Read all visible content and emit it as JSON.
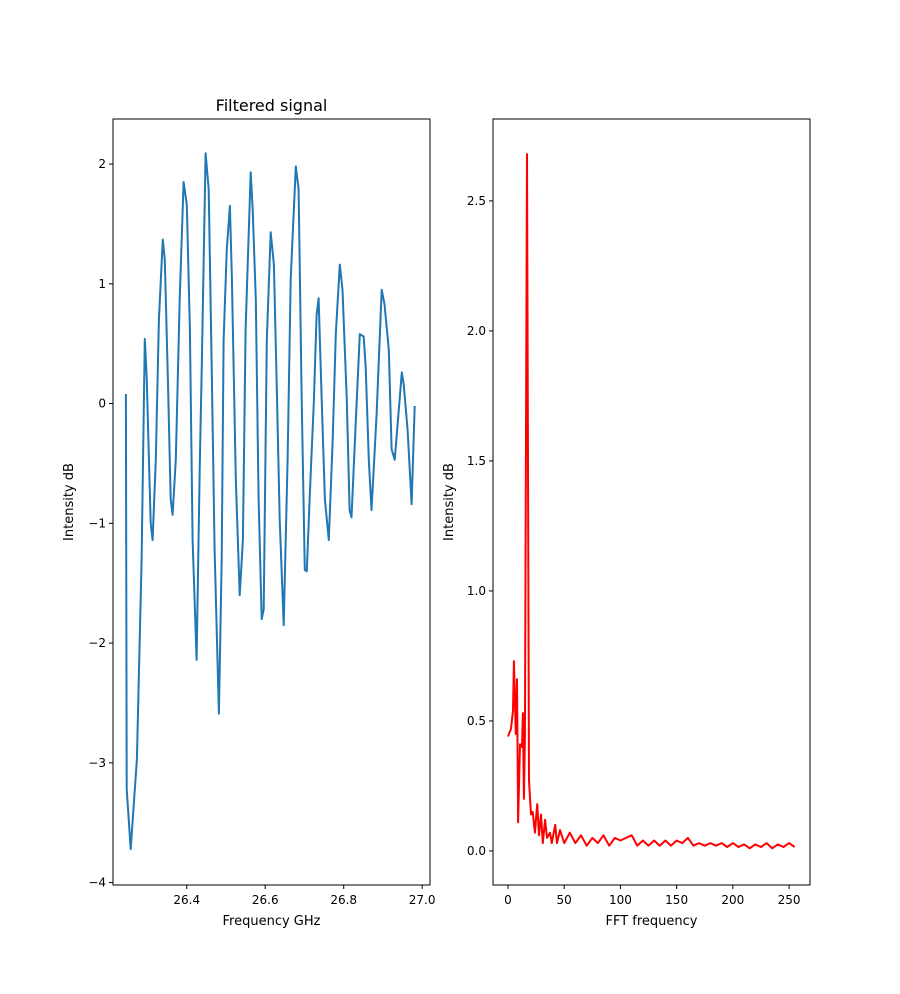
{
  "chart_data": [
    {
      "type": "line",
      "title": "Filtered signal",
      "xlabel": "Frequency GHz",
      "ylabel": "Intensity dB",
      "xlim": [
        26.212,
        27.02
      ],
      "ylim": [
        -4.02,
        2.376
      ],
      "xticks": [
        26.4,
        26.6,
        26.8,
        27.0
      ],
      "xtick_labels": [
        "26.4",
        "26.6",
        "26.8",
        "27.0"
      ],
      "yticks": [
        -4,
        -3,
        -2,
        -1,
        0,
        1,
        2
      ],
      "ytick_labels": [
        "−4",
        "−3",
        "−2",
        "−1",
        "0",
        "1",
        "2"
      ],
      "grid": false,
      "color": "#1f77b4",
      "x": [
        26.245,
        26.247,
        26.257,
        26.273,
        26.285,
        26.293,
        26.298,
        26.308,
        26.313,
        26.321,
        26.329,
        26.339,
        26.344,
        26.352,
        26.359,
        26.364,
        26.372,
        26.382,
        26.392,
        26.4,
        26.408,
        26.415,
        26.425,
        26.433,
        26.438,
        26.448,
        26.456,
        26.464,
        26.471,
        26.482,
        26.489,
        26.494,
        26.502,
        26.51,
        26.515,
        26.525,
        26.535,
        26.543,
        26.55,
        26.563,
        26.568,
        26.576,
        26.583,
        26.591,
        26.596,
        26.604,
        26.614,
        26.622,
        26.629,
        26.637,
        26.647,
        26.657,
        26.665,
        26.678,
        26.685,
        26.693,
        26.701,
        26.706,
        26.713,
        26.724,
        26.731,
        26.736,
        26.744,
        26.752,
        26.762,
        26.772,
        26.78,
        26.79,
        26.797,
        26.808,
        26.815,
        26.82,
        26.831,
        26.841,
        26.851,
        26.856,
        26.864,
        26.871,
        26.876,
        26.884,
        26.897,
        26.904,
        26.915,
        26.922,
        26.93,
        26.943,
        26.948,
        26.953,
        26.963,
        26.973,
        26.981
      ],
      "y": [
        0.08,
        -3.22,
        -3.72,
        -2.97,
        -1.3,
        0.54,
        0.22,
        -1.0,
        -1.14,
        -0.47,
        0.7,
        1.37,
        1.2,
        0.2,
        -0.8,
        -0.93,
        -0.47,
        0.87,
        1.85,
        1.66,
        0.62,
        -1.14,
        -2.14,
        -0.55,
        0.28,
        2.09,
        1.79,
        0.2,
        -1.22,
        -2.59,
        -1.3,
        0.53,
        1.29,
        1.65,
        1.04,
        -0.63,
        -1.6,
        -1.14,
        0.62,
        1.93,
        1.62,
        0.87,
        -0.8,
        -1.8,
        -1.72,
        0.53,
        1.43,
        1.16,
        0.2,
        -0.97,
        -1.85,
        -0.47,
        1.04,
        1.98,
        1.79,
        0.03,
        -1.39,
        -1.4,
        -0.8,
        0.03,
        0.74,
        0.88,
        0.03,
        -0.8,
        -1.14,
        -0.3,
        0.58,
        1.16,
        0.95,
        0.03,
        -0.89,
        -0.95,
        -0.13,
        0.58,
        0.56,
        0.3,
        -0.47,
        -0.89,
        -0.58,
        -0.09,
        0.95,
        0.83,
        0.45,
        -0.38,
        -0.47,
        0.05,
        0.26,
        0.16,
        -0.22,
        -0.84,
        -0.02
      ]
    },
    {
      "type": "line",
      "title": "",
      "xlabel": "FFT frequency",
      "ylabel": "Intensity dB",
      "xlim": [
        -13.3,
        268.6
      ],
      "ylim": [
        -0.131,
        2.815
      ],
      "xticks": [
        0,
        50,
        100,
        150,
        200,
        250
      ],
      "xtick_labels": [
        "0",
        "50",
        "100",
        "150",
        "200",
        "250"
      ],
      "yticks": [
        0,
        0.5,
        1.0,
        1.5,
        2.0,
        2.5
      ],
      "ytick_labels": [
        "0.0",
        "0.5",
        "1.0",
        "1.5",
        "2.0",
        "2.5"
      ],
      "grid": false,
      "color": "#ff0000",
      "x": [
        0,
        2.7,
        4.5,
        5.3,
        7,
        8,
        9,
        10.7,
        12.5,
        13.3,
        14.2,
        15.1,
        16.9,
        18.7,
        20.5,
        22,
        24,
        26,
        27.6,
        29.4,
        31,
        33,
        34.7,
        37.4,
        39,
        42,
        43.6,
        46.3,
        50,
        55,
        60,
        65,
        70,
        75,
        80,
        85,
        90,
        95,
        100,
        105,
        110,
        115,
        120,
        125,
        130,
        135,
        140,
        145,
        150,
        155,
        160,
        165,
        170,
        175,
        180,
        185,
        190,
        195,
        200,
        205,
        210,
        215,
        220,
        225,
        230,
        235,
        240,
        245,
        250,
        255
      ],
      "y": [
        0.44,
        0.47,
        0.54,
        0.73,
        0.45,
        0.66,
        0.11,
        0.41,
        0.4,
        0.53,
        0.2,
        0.43,
        2.68,
        0.27,
        0.14,
        0.15,
        0.07,
        0.18,
        0.06,
        0.14,
        0.03,
        0.12,
        0.05,
        0.07,
        0.03,
        0.1,
        0.03,
        0.08,
        0.03,
        0.07,
        0.03,
        0.06,
        0.02,
        0.05,
        0.03,
        0.06,
        0.02,
        0.05,
        0.04,
        0.05,
        0.06,
        0.02,
        0.04,
        0.02,
        0.04,
        0.02,
        0.04,
        0.02,
        0.04,
        0.03,
        0.05,
        0.02,
        0.03,
        0.02,
        0.03,
        0.02,
        0.03,
        0.015,
        0.03,
        0.015,
        0.025,
        0.01,
        0.025,
        0.015,
        0.03,
        0.01,
        0.025,
        0.015,
        0.03,
        0.015
      ]
    }
  ]
}
